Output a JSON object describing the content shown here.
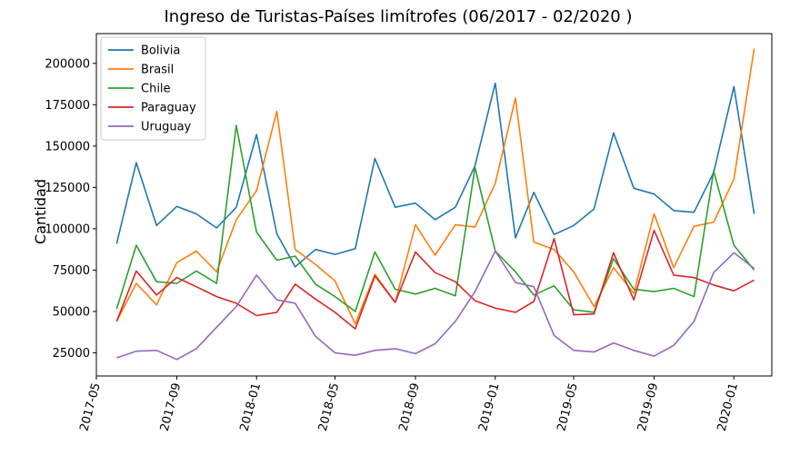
{
  "chart_data": {
    "type": "line",
    "title": "Ingreso de Turistas-Países limítrofes (06/2017 - 02/2020 )",
    "xlabel": "",
    "ylabel": "Cantidad",
    "x": [
      "2017-06",
      "2017-07",
      "2017-08",
      "2017-09",
      "2017-10",
      "2017-11",
      "2017-12",
      "2018-01",
      "2018-02",
      "2018-03",
      "2018-04",
      "2018-05",
      "2018-06",
      "2018-07",
      "2018-08",
      "2018-09",
      "2018-10",
      "2018-11",
      "2018-12",
      "2019-01",
      "2019-02",
      "2019-03",
      "2019-04",
      "2019-05",
      "2019-06",
      "2019-07",
      "2019-08",
      "2019-09",
      "2019-10",
      "2019-11",
      "2019-12",
      "2020-01",
      "2020-02"
    ],
    "xlim": [
      "2017-05-01",
      "2020-02-28"
    ],
    "ylim": [
      11000,
      218000
    ],
    "x_ticks": [
      "2017-05",
      "2017-09",
      "2018-01",
      "2018-05",
      "2018-09",
      "2019-01",
      "2019-05",
      "2019-09",
      "2020-01"
    ],
    "y_ticks": [
      25000,
      50000,
      75000,
      100000,
      125000,
      150000,
      175000,
      200000
    ],
    "y_tick_labels": [
      "25000",
      "50000",
      "75000",
      "100000",
      "125000",
      "150000",
      "175000",
      "200000"
    ],
    "legend_position": "top-left",
    "series": [
      {
        "name": "Bolivia",
        "color": "#1f77b4",
        "values": [
          91000,
          140000,
          102000,
          113500,
          109000,
          100500,
          113000,
          157000,
          97000,
          77000,
          87500,
          84500,
          88000,
          142500,
          113000,
          115500,
          105500,
          113000,
          138000,
          188000,
          94500,
          122000,
          96500,
          102000,
          112000,
          158000,
          124500,
          121000,
          111000,
          110000,
          134000,
          186000,
          109000
        ]
      },
      {
        "name": "Brasil",
        "color": "#ff7f0e",
        "values": [
          44000,
          67000,
          54000,
          79500,
          86500,
          74000,
          105500,
          123000,
          171000,
          87500,
          78500,
          68500,
          42500,
          72500,
          55500,
          102500,
          84000,
          102500,
          101000,
          127500,
          179000,
          92000,
          87500,
          74000,
          53000,
          76500,
          61000,
          109000,
          76500,
          101500,
          104000,
          130000,
          209000
        ]
      },
      {
        "name": "Chile",
        "color": "#2ca02c",
        "values": [
          51500,
          90000,
          68000,
          67000,
          74500,
          67000,
          162500,
          98000,
          81000,
          83500,
          66500,
          59000,
          50000,
          86000,
          63500,
          60500,
          64000,
          59500,
          137000,
          86500,
          74000,
          60000,
          65500,
          51000,
          49500,
          82000,
          63500,
          62000,
          64000,
          59000,
          135000,
          90000,
          75000
        ]
      },
      {
        "name": "Paraguay",
        "color": "#d62728",
        "values": [
          44000,
          74500,
          60000,
          70500,
          65000,
          59000,
          55000,
          47500,
          49500,
          66500,
          57500,
          49500,
          39500,
          71500,
          55500,
          86000,
          73500,
          68000,
          56500,
          52000,
          49500,
          56000,
          94000,
          48000,
          48500,
          85500,
          57000,
          99000,
          72000,
          70500,
          66000,
          62500,
          69000
        ]
      },
      {
        "name": "Uruguay",
        "color": "#9467bd",
        "values": [
          22000,
          26000,
          26500,
          21000,
          27500,
          40500,
          53000,
          72000,
          57000,
          55000,
          35000,
          25000,
          23500,
          26500,
          27500,
          24500,
          30500,
          44000,
          62000,
          86500,
          67500,
          65000,
          35500,
          26500,
          25500,
          31000,
          26500,
          23000,
          29500,
          44000,
          73500,
          85500,
          76000
        ]
      }
    ]
  }
}
